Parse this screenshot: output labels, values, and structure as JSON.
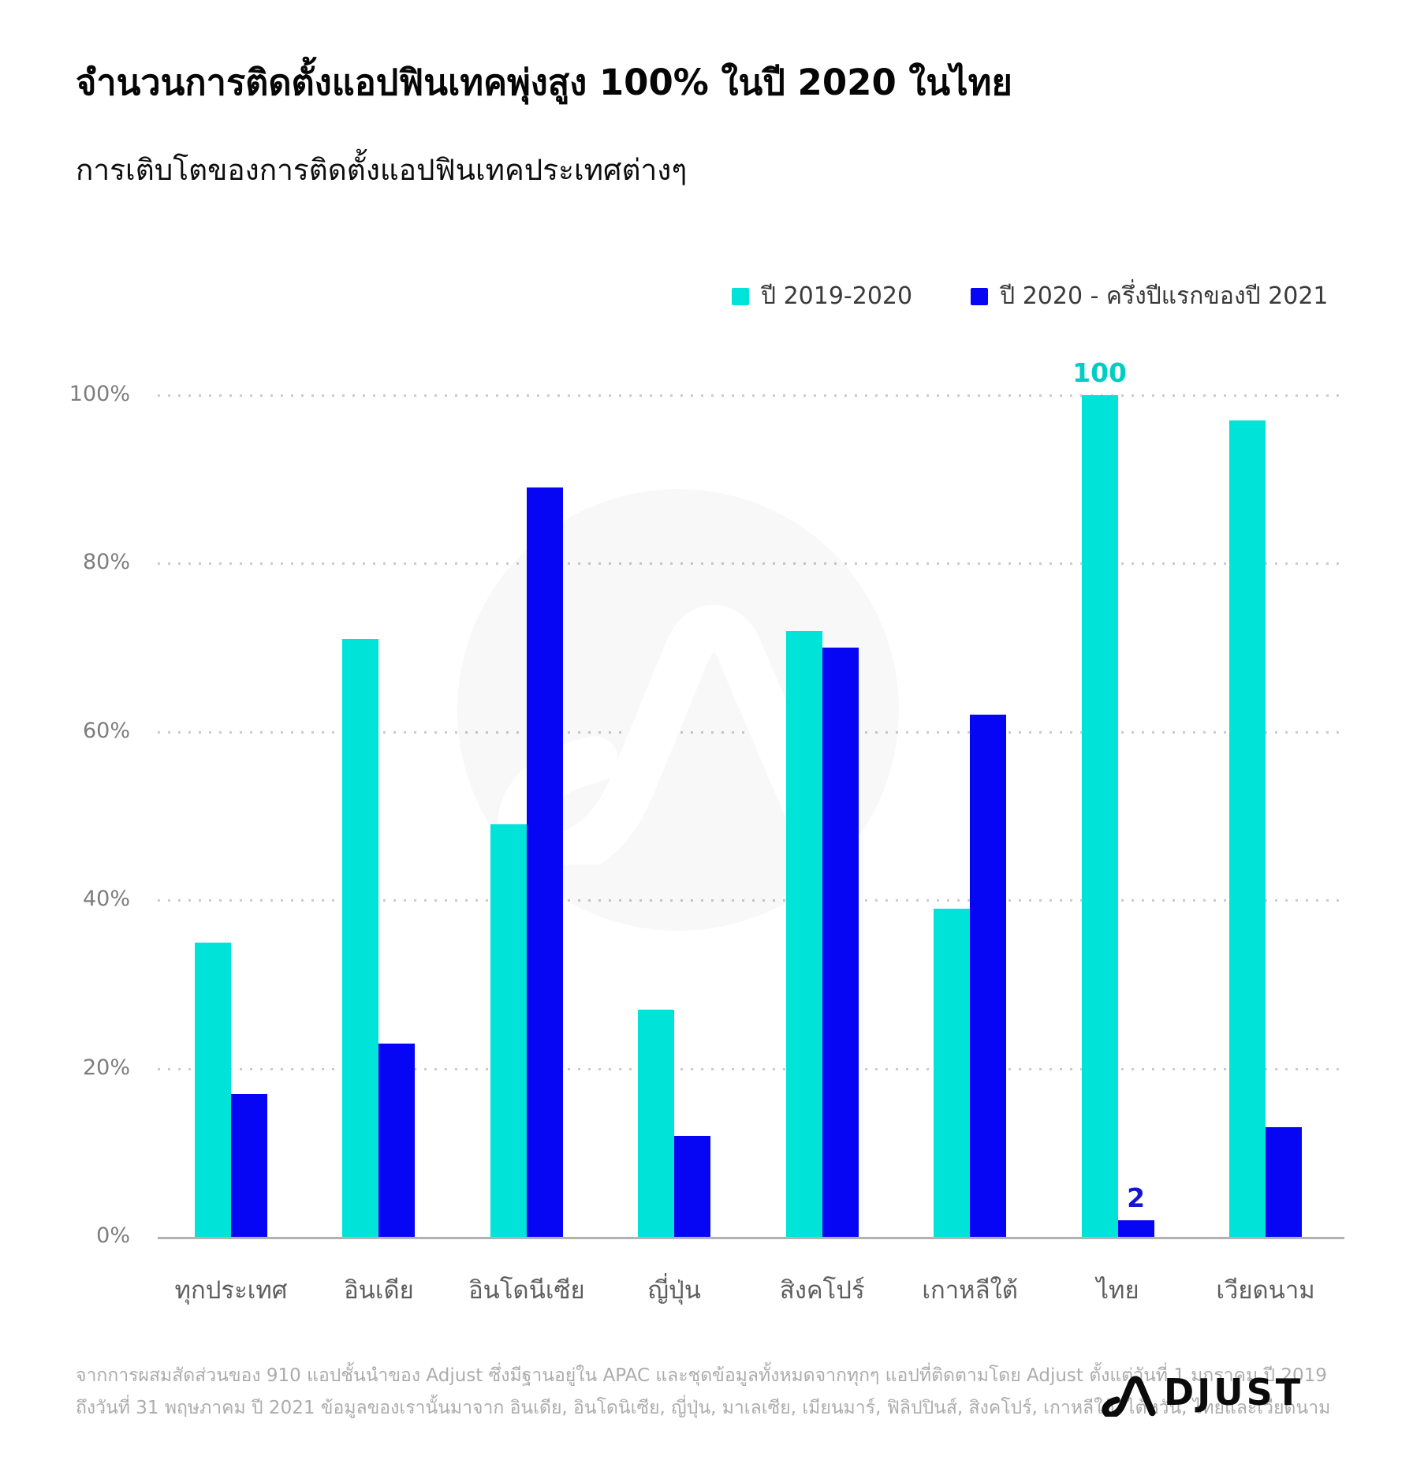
{
  "header": {
    "title": "จำนวนการติดตั้งแอปฟินเทคพุ่งสูง 100% ในปี 2020 ในไทย",
    "subtitle": "การเติบโตของการติดตั้งแอปฟินเทคประเทศต่างๆ"
  },
  "legend": [
    {
      "label": "ปี 2019-2020",
      "color": "#00E3D8"
    },
    {
      "label": "ปี 2020 - ครึ่งปีแรกของปี 2021",
      "color": "#0606F5"
    }
  ],
  "y_axis": {
    "ticks": [
      {
        "label": "0%",
        "value": 0
      },
      {
        "label": "20%",
        "value": 20
      },
      {
        "label": "40%",
        "value": 40
      },
      {
        "label": "60%",
        "value": 60
      },
      {
        "label": "80%",
        "value": 80
      },
      {
        "label": "100%",
        "value": 100
      }
    ]
  },
  "chart_data": {
    "type": "bar",
    "title": "จำนวนการติดตั้งแอปฟินเทคพุ่งสูง 100% ในปี 2020 ในไทย",
    "subtitle": "การเติบโตของการติดตั้งแอปฟินเทคประเทศต่างๆ",
    "categories": [
      "ทุกประเทศ",
      "อินเดีย",
      "อินโดนีเซีย",
      "ญี่ปุ่น",
      "สิงคโปร์",
      "เกาหลีใต้",
      "ไทย",
      "เวียดนาม"
    ],
    "series": [
      {
        "name": "ปี 2019-2020",
        "color": "#00E3D8",
        "label_color": "#00CEC5",
        "values": [
          35,
          71,
          49,
          27,
          72,
          39,
          100,
          97
        ],
        "value_labels": [
          null,
          null,
          null,
          null,
          null,
          null,
          "100",
          null
        ]
      },
      {
        "name": "ปี 2020 - ครึ่งปีแรกของปี 2021",
        "color": "#0606F5",
        "label_color": "#1414D2",
        "values": [
          17,
          23,
          89,
          12,
          70,
          62,
          2,
          13
        ],
        "value_labels": [
          null,
          null,
          null,
          null,
          null,
          null,
          "2",
          null
        ]
      }
    ],
    "ylim": [
      0,
      100
    ],
    "grid": "horizontal-dotted",
    "legend_position": "top-right"
  },
  "footer": {
    "source_line1": "จากการผสมสัดส่วนของ 910 แอปชั้นนำของ Adjust ซึ่งมีฐานอยู่ใน APAC และชุดข้อมูลทั้งหมดจากทุกๆ แอปที่ติดตามโดย Adjust ตั้งแต่วันที่ 1 มกราคม ปี 2019",
    "source_line2": "ถึงวันที่ 31 พฤษภาคม ปี 2021 ข้อมูลของเรานั้นมาจาก อินเดีย, อินโดนิเซีย, ญี่ปุ่น, มาเลเซีย, เมียนมาร์, ฟิลิปปินส์, สิงคโปร์, เกาหลีใต้, ไต้หวัน, ไทยและเวียดนาม",
    "logo_text": "ADJUST",
    "logo_rest": "DJUST"
  }
}
